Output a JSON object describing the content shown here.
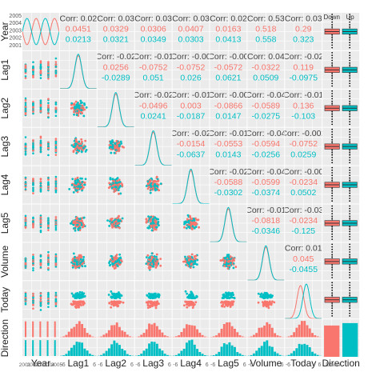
{
  "chart_data": {
    "type": "scatter",
    "variables": [
      "Year",
      "Lag1",
      "Lag2",
      "Lag3",
      "Lag4",
      "Lag5",
      "Volume",
      "Today",
      "Direction"
    ],
    "groups": [
      "Down",
      "Up"
    ],
    "group_colors": {
      "Down": "#F8766D",
      "Up": "#00BFC4"
    },
    "panel_background": "#EBEBEB",
    "grid": true,
    "year_ticks": [
      "2001",
      "2002",
      "2003",
      "2004",
      "2005"
    ],
    "year_corner_tick_labels": [
      "2005",
      "2004",
      "2003",
      "2002",
      "2001"
    ],
    "direction_axis_labels": [
      "Down",
      "Up"
    ],
    "lag_axis_tick_labels": [
      "-6",
      "-3",
      "0",
      "3",
      "6"
    ],
    "correlations": [
      {
        "row": "Year",
        "col": "Lag1",
        "label": "Corr: 0.02",
        "down": "0.0451",
        "up": "0.0213"
      },
      {
        "row": "Year",
        "col": "Lag2",
        "label": "Corr: 0.03",
        "down": "0.0329",
        "up": "0.0321"
      },
      {
        "row": "Year",
        "col": "Lag3",
        "label": "Corr: 0.03",
        "down": "0.0306",
        "up": "0.0349"
      },
      {
        "row": "Year",
        "col": "Lag4",
        "label": "Corr: 0.03",
        "down": "0.0407",
        "up": "0.0303"
      },
      {
        "row": "Year",
        "col": "Lag5",
        "label": "Corr: 0.02",
        "down": "0.0163",
        "up": "0.0413"
      },
      {
        "row": "Year",
        "col": "Volume",
        "label": "Corr: 0.53",
        "down": "0.518",
        "up": "0.558"
      },
      {
        "row": "Year",
        "col": "Today",
        "label": "Corr: 0.03",
        "down": "0.29",
        "up": "0.323"
      },
      {
        "row": "Lag1",
        "col": "Lag2",
        "label": "Corr: -0.02",
        "down": "0.0256",
        "up": "-0.0289"
      },
      {
        "row": "Lag1",
        "col": "Lag3",
        "label": "Corr: -0.01",
        "down": "-0.0752",
        "up": "0.051"
      },
      {
        "row": "Lag1",
        "col": "Lag4",
        "label": "Corr: -0.00",
        "down": "-0.0752",
        "up": "0.026"
      },
      {
        "row": "Lag1",
        "col": "Lag5",
        "label": "Corr: -0.00",
        "down": "-0.0572",
        "up": "0.0621"
      },
      {
        "row": "Lag1",
        "col": "Volume",
        "label": "Corr: 0.04",
        "down": "-0.0322",
        "up": "0.0509"
      },
      {
        "row": "Lag1",
        "col": "Today",
        "label": "Corr: -0.02",
        "down": "0.119",
        "up": "-0.0975"
      },
      {
        "row": "Lag2",
        "col": "Lag3",
        "label": "Corr: -0.02",
        "down": "-0.0496",
        "up": "0.0241"
      },
      {
        "row": "Lag2",
        "col": "Lag4",
        "label": "Corr: -0.01",
        "down": "0.003",
        "up": "-0.0187"
      },
      {
        "row": "Lag2",
        "col": "Lag5",
        "label": "Corr: -0.00",
        "down": "-0.0866",
        "up": "0.0147"
      },
      {
        "row": "Lag2",
        "col": "Volume",
        "label": "Corr: -0.04",
        "down": "-0.0589",
        "up": "-0.0275"
      },
      {
        "row": "Lag2",
        "col": "Today",
        "label": "Corr: -0.01",
        "down": "0.136",
        "up": "-0.103"
      },
      {
        "row": "Lag3",
        "col": "Lag4",
        "label": "Corr: -0.02",
        "down": "-0.0154",
        "up": "-0.0637"
      },
      {
        "row": "Lag3",
        "col": "Lag5",
        "label": "Corr: -0.01",
        "down": "-0.0553",
        "up": "0.0143"
      },
      {
        "row": "Lag3",
        "col": "Volume",
        "label": "Corr: -0.04",
        "down": "-0.0594",
        "up": "-0.0256"
      },
      {
        "row": "Lag3",
        "col": "Today",
        "label": "Corr: -0.002",
        "down": "-0.0752",
        "up": "0.0259"
      },
      {
        "row": "Lag4",
        "col": "Lag5",
        "label": "Corr: -0.02",
        "down": "-0.0588",
        "up": "-0.0302"
      },
      {
        "row": "Lag4",
        "col": "Volume",
        "label": "Corr: -0.04",
        "down": "-0.0599",
        "up": "-0.0374"
      },
      {
        "row": "Lag4",
        "col": "Today",
        "label": "Corr: -0.00",
        "down": "-0.0234",
        "up": "0.0502"
      },
      {
        "row": "Lag5",
        "col": "Volume",
        "label": "Corr: -0.01",
        "down": "-0.0818",
        "up": "-0.0346"
      },
      {
        "row": "Lag5",
        "col": "Today",
        "label": "Corr: -0.03",
        "down": "-0.0234",
        "up": "-0.125"
      },
      {
        "row": "Volume",
        "col": "Today",
        "label": "Corr: 0.01",
        "down": "0.045",
        "up": "-0.0455"
      }
    ],
    "direction_counts": {
      "Down": 602,
      "Up": 648
    }
  }
}
